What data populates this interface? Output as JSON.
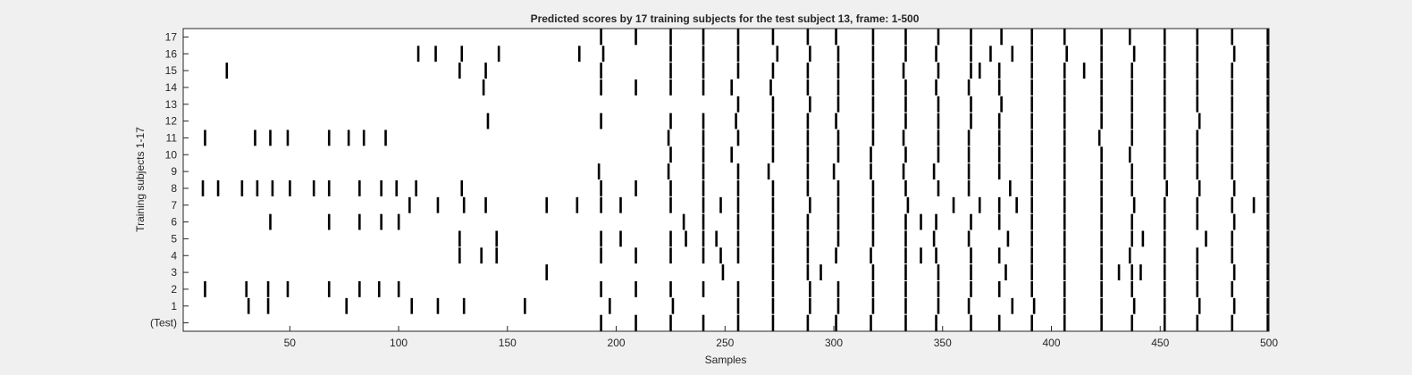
{
  "chart_data": {
    "type": "event-raster",
    "title": "Predicted scores by 17 training subjects for the test subject 13, frame: 1-500",
    "xlabel": "Samples",
    "ylabel": "Training subjects 1-17",
    "xlim": [
      1,
      500
    ],
    "x_ticks": [
      50,
      100,
      150,
      200,
      250,
      300,
      350,
      400,
      450,
      500
    ],
    "y_tick_labels": [
      "(Test)",
      "1",
      "2",
      "3",
      "4",
      "5",
      "6",
      "7",
      "8",
      "9",
      "10",
      "11",
      "12",
      "13",
      "14",
      "15",
      "16",
      "17"
    ],
    "grid": false,
    "rows": [
      {
        "label": "(Test)",
        "x": [
          193,
          209,
          225,
          240,
          256,
          272,
          288,
          301,
          317,
          333,
          347,
          363,
          376,
          391,
          406,
          423,
          437,
          452,
          467,
          483,
          500
        ]
      },
      {
        "label": "1",
        "x": [
          31,
          40,
          76,
          106,
          118,
          130,
          158,
          197,
          226,
          256,
          272,
          289,
          302,
          318,
          333,
          348,
          362,
          382,
          392,
          406,
          423,
          438,
          452,
          468,
          484,
          500
        ]
      },
      {
        "label": "2",
        "x": [
          11,
          30,
          40,
          49,
          68,
          82,
          91,
          100,
          193,
          209,
          225,
          240,
          256,
          272,
          289,
          302,
          318,
          333,
          348,
          363,
          376,
          391,
          406,
          423,
          437,
          452,
          467,
          483,
          500
        ]
      },
      {
        "label": "3",
        "x": [
          168,
          249,
          272,
          288,
          294,
          318,
          333,
          348,
          363,
          379,
          391,
          406,
          423,
          431,
          437,
          441,
          452,
          467,
          484,
          500
        ]
      },
      {
        "label": "4",
        "x": [
          128,
          138,
          145,
          193,
          209,
          225,
          240,
          248,
          256,
          272,
          288,
          301,
          317,
          333,
          340,
          347,
          363,
          376,
          391,
          406,
          423,
          436,
          452,
          467,
          483,
          500
        ]
      },
      {
        "label": "5",
        "x": [
          128,
          145,
          193,
          202,
          225,
          232,
          240,
          246,
          256,
          272,
          288,
          302,
          318,
          333,
          346,
          362,
          380,
          391,
          406,
          423,
          437,
          442,
          452,
          471,
          483,
          500
        ]
      },
      {
        "label": "6",
        "x": [
          41,
          68,
          82,
          92,
          100,
          231,
          240,
          256,
          272,
          288,
          302,
          318,
          333,
          340,
          347,
          363,
          376,
          391,
          406,
          423,
          437,
          452,
          467,
          484,
          500
        ]
      },
      {
        "label": "7",
        "x": [
          105,
          118,
          130,
          140,
          168,
          182,
          193,
          202,
          225,
          240,
          248,
          256,
          272,
          289,
          302,
          318,
          334,
          355,
          367,
          376,
          384,
          391,
          406,
          423,
          438,
          452,
          467,
          483,
          493,
          500
        ]
      },
      {
        "label": "8",
        "x": [
          10,
          17,
          28,
          35,
          42,
          50,
          61,
          68,
          82,
          92,
          99,
          108,
          129,
          193,
          209,
          225,
          240,
          256,
          272,
          288,
          302,
          318,
          333,
          348,
          362,
          381,
          391,
          406,
          423,
          437,
          453,
          468,
          484,
          500
        ]
      },
      {
        "label": "9",
        "x": [
          192,
          224,
          240,
          256,
          270,
          288,
          300,
          317,
          332,
          346,
          362,
          376,
          391,
          406,
          423,
          437,
          452,
          467,
          483,
          500
        ]
      },
      {
        "label": "10",
        "x": [
          225,
          240,
          253,
          272,
          288,
          302,
          317,
          333,
          348,
          362,
          376,
          391,
          406,
          423,
          436,
          452,
          467,
          483,
          500
        ]
      },
      {
        "label": "11",
        "x": [
          11,
          34,
          41,
          49,
          68,
          77,
          84,
          94,
          224,
          240,
          256,
          272,
          288,
          302,
          318,
          332,
          348,
          362,
          376,
          391,
          406,
          422,
          437,
          452,
          467,
          483,
          500
        ]
      },
      {
        "label": "12",
        "x": [
          141,
          193,
          225,
          240,
          255,
          272,
          288,
          301,
          318,
          333,
          348,
          363,
          376,
          391,
          406,
          423,
          437,
          452,
          468,
          483,
          500
        ]
      },
      {
        "label": "13",
        "x": [
          256,
          272,
          289,
          302,
          318,
          333,
          348,
          363,
          377,
          391,
          406,
          423,
          437,
          452,
          467,
          483,
          500
        ]
      },
      {
        "label": "14",
        "x": [
          139,
          193,
          209,
          225,
          240,
          253,
          271,
          288,
          302,
          318,
          333,
          347,
          362,
          376,
          391,
          406,
          423,
          437,
          452,
          467,
          483,
          500
        ]
      },
      {
        "label": "15",
        "x": [
          21,
          128,
          140,
          193,
          225,
          240,
          256,
          272,
          288,
          302,
          318,
          332,
          348,
          363,
          367,
          376,
          391,
          406,
          415,
          423,
          437,
          452,
          467,
          483,
          500
        ]
      },
      {
        "label": "16",
        "x": [
          109,
          117,
          129,
          146,
          183,
          194,
          225,
          240,
          256,
          274,
          289,
          302,
          318,
          333,
          347,
          363,
          372,
          382,
          391,
          407,
          423,
          438,
          452,
          467,
          484,
          500
        ]
      },
      {
        "label": "17",
        "x": [
          193,
          209,
          225,
          240,
          256,
          272,
          288,
          301,
          318,
          333,
          348,
          363,
          377,
          391,
          406,
          423,
          436,
          452,
          467,
          483,
          500
        ]
      }
    ]
  }
}
